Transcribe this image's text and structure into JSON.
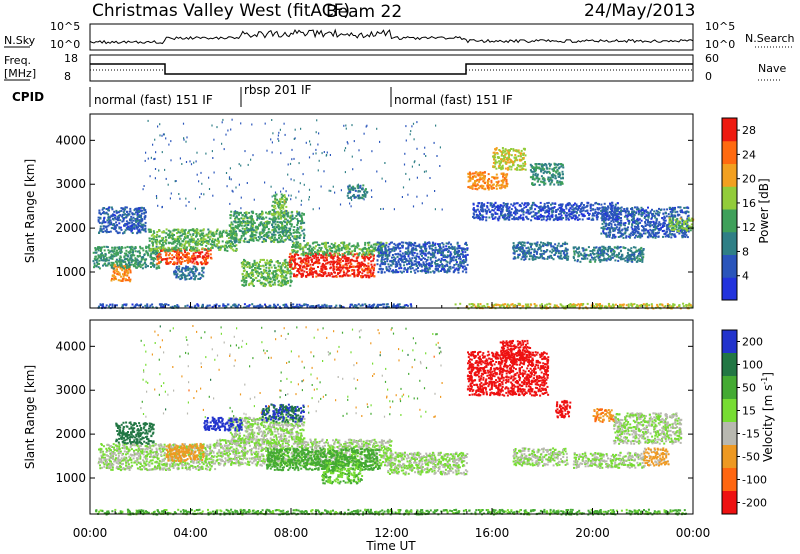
{
  "header": {
    "station": "Christmas Valley West (fitACF)",
    "beam": "Beam 22",
    "date": "24/May/2013"
  },
  "strip_labels": {
    "nsky": "N.Sky",
    "nsearch": "N.Search",
    "freq": "Freq.",
    "freq_unit": "[MHz]",
    "nave": "Nave",
    "cpid": "CPID"
  },
  "strip_ticks": {
    "noise_left": [
      "10^5",
      "10^0"
    ],
    "noise_right": [
      "10^5",
      "10^0"
    ],
    "freq_left": [
      "18",
      "8"
    ],
    "nave_right": [
      "60",
      "0"
    ]
  },
  "cpid_segments": [
    {
      "label": "normal (fast) 151 IF",
      "start_h": 0,
      "end_h": 6
    },
    {
      "label": "rbsp 201 IF",
      "start_h": 6,
      "end_h": 12
    },
    {
      "label": "normal (fast) 151 IF",
      "start_h": 12,
      "end_h": 24
    }
  ],
  "chart_data": [
    {
      "type": "heatmap",
      "panel": "power",
      "xlabel": "Time UT",
      "ylabel": "Slant Range [km]",
      "x_range_h": [
        0,
        24
      ],
      "ylim": [
        180,
        4600
      ],
      "y_ticks": [
        1000,
        2000,
        3000,
        4000
      ],
      "colorbar": {
        "label": "Power [dB]",
        "ticks": [
          4,
          8,
          12,
          16,
          20,
          24,
          28
        ],
        "range": [
          0,
          30
        ],
        "colors": [
          "#2233dd",
          "#2a55bb",
          "#2f7f86",
          "#3fa05a",
          "#92cc3a",
          "#f2a020",
          "#ff6a10",
          "#ee1a10"
        ]
      },
      "echo_regions": [
        {
          "t0": 0.3,
          "t1": 12.8,
          "r0": 200,
          "r1": 290,
          "v": 6
        },
        {
          "t0": 0.3,
          "t1": 2.2,
          "r0": 1900,
          "r1": 2500,
          "v": 6
        },
        {
          "t0": 0.8,
          "t1": 1.6,
          "r0": 800,
          "r1": 1200,
          "v": 22
        },
        {
          "t0": 0.1,
          "t1": 2.8,
          "r0": 1100,
          "r1": 1600,
          "v": 12
        },
        {
          "t0": 2.6,
          "t1": 4.8,
          "r0": 1200,
          "r1": 1550,
          "v": 26
        },
        {
          "t0": 2.3,
          "t1": 5.8,
          "r0": 1500,
          "r1": 2000,
          "v": 14
        },
        {
          "t0": 3.3,
          "t1": 4.5,
          "r0": 850,
          "r1": 1150,
          "v": 8
        },
        {
          "t0": 5.5,
          "t1": 8.5,
          "r0": 1700,
          "r1": 2400,
          "v": 13
        },
        {
          "t0": 6.0,
          "t1": 8.0,
          "r0": 700,
          "r1": 1300,
          "v": 15
        },
        {
          "t0": 7.2,
          "t1": 7.8,
          "r0": 2300,
          "r1": 2800,
          "v": 16
        },
        {
          "t0": 7.9,
          "t1": 11.3,
          "r0": 900,
          "r1": 1450,
          "v": 28
        },
        {
          "t0": 8.0,
          "t1": 11.8,
          "r0": 1400,
          "r1": 1700,
          "v": 14
        },
        {
          "t0": 10.2,
          "t1": 11.0,
          "r0": 2700,
          "r1": 3000,
          "v": 10
        },
        {
          "t0": 11.4,
          "t1": 15.0,
          "r0": 1000,
          "r1": 1700,
          "v": 6
        },
        {
          "t0": 15.0,
          "t1": 16.6,
          "r0": 2900,
          "r1": 3300,
          "v": 22
        },
        {
          "t0": 16.0,
          "t1": 17.3,
          "r0": 3350,
          "r1": 3850,
          "v": 18
        },
        {
          "t0": 16.8,
          "t1": 19.0,
          "r0": 1300,
          "r1": 1700,
          "v": 8
        },
        {
          "t0": 19.2,
          "t1": 22.0,
          "r0": 1250,
          "r1": 1600,
          "v": 9
        },
        {
          "t0": 15.2,
          "t1": 21.0,
          "r0": 2200,
          "r1": 2600,
          "v": 5
        },
        {
          "t0": 20.3,
          "t1": 23.8,
          "r0": 1800,
          "r1": 2500,
          "v": 6
        },
        {
          "t0": 23.0,
          "t1": 24.0,
          "r0": 1950,
          "r1": 2250,
          "v": 16
        },
        {
          "t0": 17.5,
          "t1": 18.8,
          "r0": 3000,
          "r1": 3500,
          "v": 11
        },
        {
          "t0": 14.5,
          "t1": 23.9,
          "r0": 190,
          "r1": 300,
          "v": 18
        }
      ]
    },
    {
      "type": "heatmap",
      "panel": "velocity",
      "xlabel": "Time UT",
      "ylabel": "Slant Range [km]",
      "x_range_h": [
        0,
        24
      ],
      "ylim": [
        180,
        4600
      ],
      "y_ticks": [
        1000,
        2000,
        3000,
        4000
      ],
      "x_ticks": [
        "00:00",
        "04:00",
        "08:00",
        "12:00",
        "16:00",
        "20:00",
        "00:00"
      ],
      "colorbar": {
        "label": "Velocity [m s",
        "label_exp": "-1",
        "label_end": "]",
        "ticks": [
          "200",
          "100",
          "50",
          "15",
          "-15",
          "-50",
          "-100",
          "-200"
        ],
        "colors": [
          "#2233cc",
          "#227744",
          "#44aa33",
          "#77dd33",
          "#b8b8b0",
          "#ee9922",
          "#ff6610",
          "#ee1111"
        ]
      },
      "echo_regions": [
        {
          "t0": 0.3,
          "t1": 5.0,
          "r0": 1200,
          "r1": 1800,
          "v": 0
        },
        {
          "t0": 5.0,
          "t1": 12.0,
          "r0": 1300,
          "r1": 1900,
          "v": 0
        },
        {
          "t0": 7.0,
          "t1": 11.5,
          "r0": 1200,
          "r1": 1700,
          "v": 60
        },
        {
          "t0": 9.2,
          "t1": 10.8,
          "r0": 900,
          "r1": 1400,
          "v": 30
        },
        {
          "t0": 5.5,
          "t1": 8.5,
          "r0": 1800,
          "r1": 2400,
          "v": 0
        },
        {
          "t0": 11.8,
          "t1": 15.0,
          "r0": 1100,
          "r1": 1600,
          "v": 0
        },
        {
          "t0": 3.0,
          "t1": 4.5,
          "r0": 1400,
          "r1": 1800,
          "v": -50
        },
        {
          "t0": 1.0,
          "t1": 2.5,
          "r0": 1800,
          "r1": 2300,
          "v": 120
        },
        {
          "t0": 4.5,
          "t1": 6.0,
          "r0": 2100,
          "r1": 2400,
          "v": 200
        },
        {
          "t0": 6.8,
          "t1": 8.5,
          "r0": 2300,
          "r1": 2700,
          "v": 150
        },
        {
          "t0": 0.2,
          "t1": 23.8,
          "r0": 190,
          "r1": 300,
          "v": 40
        },
        {
          "t0": 15.0,
          "t1": 18.2,
          "r0": 2900,
          "r1": 3900,
          "v": -200
        },
        {
          "t0": 16.3,
          "t1": 17.5,
          "r0": 3650,
          "r1": 4150,
          "v": -200
        },
        {
          "t0": 16.8,
          "t1": 19.0,
          "r0": 1300,
          "r1": 1700,
          "v": 0
        },
        {
          "t0": 19.2,
          "t1": 22.0,
          "r0": 1250,
          "r1": 1600,
          "v": 0
        },
        {
          "t0": 20.8,
          "t1": 23.5,
          "r0": 1800,
          "r1": 2500,
          "v": 0
        },
        {
          "t0": 20.0,
          "t1": 20.8,
          "r0": 2300,
          "r1": 2600,
          "v": -70
        },
        {
          "t0": 18.5,
          "t1": 19.1,
          "r0": 2400,
          "r1": 2800,
          "v": -200
        },
        {
          "t0": 22.0,
          "t1": 23.0,
          "r0": 1300,
          "r1": 1700,
          "v": -40
        }
      ]
    }
  ]
}
